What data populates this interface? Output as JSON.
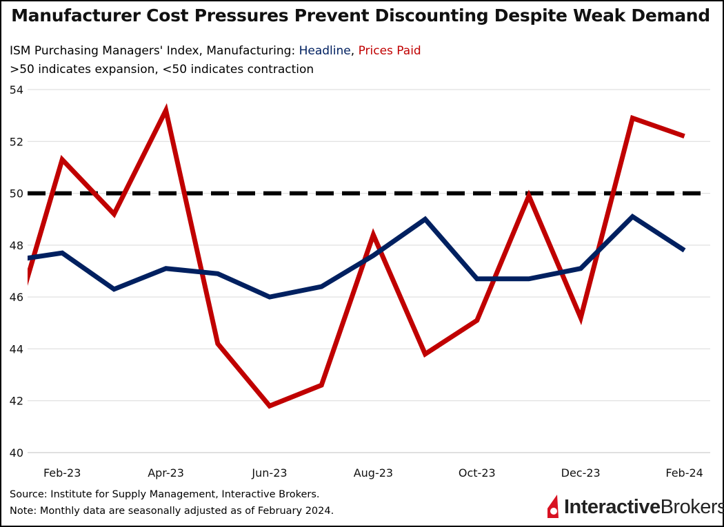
{
  "chart_data": {
    "type": "line",
    "title": "Manufacturer Cost Pressures Prevent Discounting Despite Weak Demand",
    "subtitle_prefix": "ISM Purchasing Managers' Index, Manufacturing: ",
    "subtitle_line2": ">50 indicates expansion, <50 indicates contraction",
    "x": [
      "Jan-23",
      "Feb-23",
      "Mar-23",
      "Apr-23",
      "May-23",
      "Jun-23",
      "Jul-23",
      "Aug-23",
      "Sep-23",
      "Oct-23",
      "Nov-23",
      "Dec-23",
      "Jan-24",
      "Feb-24"
    ],
    "x_tick_labels": [
      "Feb-23",
      "Apr-23",
      "Jun-23",
      "Aug-23",
      "Oct-23",
      "Dec-23",
      "Feb-24"
    ],
    "series": [
      {
        "name": "Headline",
        "color": "#002060",
        "values": [
          47.4,
          47.7,
          46.3,
          47.1,
          46.9,
          46.0,
          46.4,
          47.6,
          49.0,
          46.7,
          46.7,
          47.1,
          49.1,
          47.8
        ]
      },
      {
        "name": "Prices Paid",
        "color": "#c00000",
        "values": [
          44.5,
          51.3,
          49.2,
          53.2,
          44.2,
          41.8,
          42.6,
          48.4,
          43.8,
          45.1,
          49.9,
          45.2,
          52.9,
          52.2
        ]
      }
    ],
    "reference_line": {
      "value": 50,
      "style": "dashed",
      "color": "#000000"
    },
    "ylim": [
      40,
      54
    ],
    "y_ticks": [
      40,
      42,
      44,
      46,
      48,
      50,
      52,
      54
    ],
    "grid": true,
    "legend": "none (series named in subtitle)"
  },
  "footer": {
    "source": "Source: Institute for Supply Management, Interactive Brokers.",
    "note": "Note: Monthly data are seasonally adjusted as of February 2024."
  },
  "logo": {
    "part1": "Interactive",
    "part2": "Brokers",
    "color": "#d81222"
  },
  "separator": ", "
}
